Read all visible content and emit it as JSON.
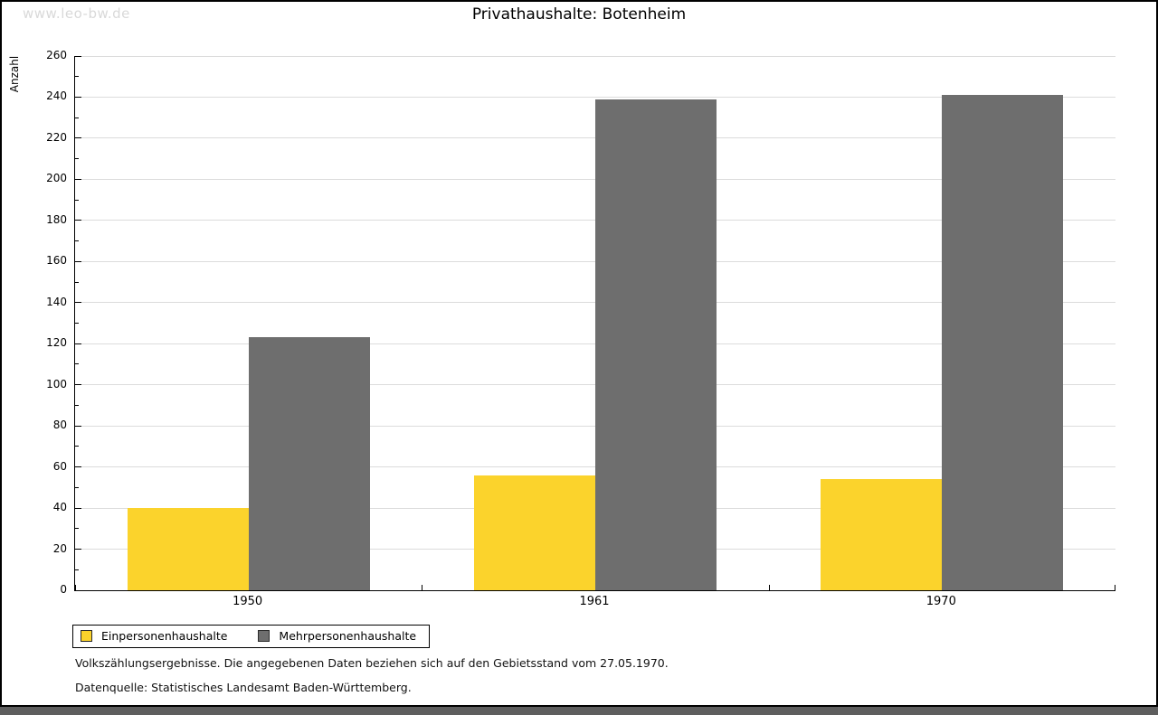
{
  "watermark": "www.leo-bw.de",
  "title": "Privathaushalte: Botenheim",
  "chart_data": {
    "type": "bar",
    "title": "Privathaushalte: Botenheim",
    "categories": [
      "1950",
      "1961",
      "1970"
    ],
    "series": [
      {
        "name": "Einpersonenhaushalte",
        "color": "#FBD32C",
        "values": [
          40,
          56,
          54
        ]
      },
      {
        "name": "Mehrpersonenhaushalte",
        "color": "#6E6E6E",
        "values": [
          123,
          239,
          241
        ]
      }
    ],
    "xlabel": "",
    "ylabel": "Anzahl",
    "ylim": [
      0,
      260
    ],
    "y_major_step": 20,
    "y_minor_step": 10,
    "grid": true,
    "legend_position": "bottom-left"
  },
  "footnotes": [
    "Volkszählungsergebnisse. Die angegebenen Daten beziehen sich auf den Gebietsstand vom 27.05.1970.",
    "Datenquelle: Statistisches Landesamt Baden-Württemberg."
  ],
  "colors": {
    "bar_yellow": "#FBD32C",
    "bar_gray": "#6E6E6E",
    "gridline": "#DCDCDC",
    "watermark_text": "#D9D9D9",
    "frame_border": "#000000",
    "bottom_strip": "#5E5E5E"
  }
}
